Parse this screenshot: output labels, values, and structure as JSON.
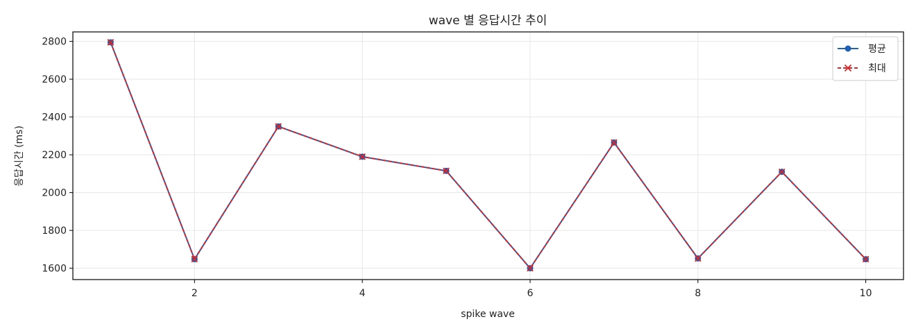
{
  "chart_data": {
    "type": "line",
    "title": "wave 별 응답시간 추이",
    "xlabel": "spike wave",
    "ylabel": "응답시간 (ms)",
    "x": [
      1,
      2,
      3,
      4,
      5,
      6,
      7,
      8,
      9,
      10
    ],
    "xlim": [
      0.55,
      10.45
    ],
    "ylim": [
      1540,
      2850
    ],
    "xticks": [
      2,
      4,
      6,
      8,
      10
    ],
    "yticks": [
      1600,
      1800,
      2000,
      2200,
      2400,
      2600,
      2800
    ],
    "grid": true,
    "legend_position": "top-right",
    "series": [
      {
        "name": "평균",
        "values": [
          2795,
          1648,
          2350,
          2190,
          2115,
          1600,
          2265,
          1652,
          2110,
          1648
        ],
        "color": "#1f5fb4",
        "line_style": "solid",
        "marker": "circle"
      },
      {
        "name": "최대",
        "values": [
          2795,
          1648,
          2350,
          2190,
          2115,
          1600,
          2265,
          1652,
          2110,
          1648
        ],
        "color": "#d62728",
        "line_style": "dashed",
        "marker": "x"
      }
    ]
  }
}
